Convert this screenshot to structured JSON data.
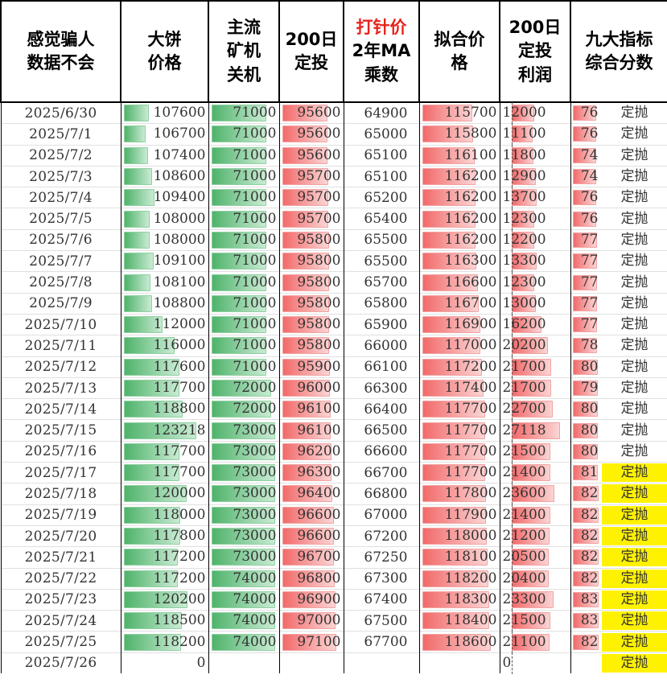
{
  "header": [
    {
      "lines": [
        "感觉骗人",
        "数据不会"
      ]
    },
    {
      "lines": [
        "大饼",
        "价格"
      ]
    },
    {
      "lines": [
        "主流",
        "矿机",
        "关机"
      ]
    },
    {
      "lines": [
        "200日",
        "定投"
      ]
    },
    {
      "lines": [
        "打针价",
        "2年MA",
        "乘数"
      ],
      "red_line": 0
    },
    {
      "lines": [
        "拟合价",
        "格"
      ]
    },
    {
      "lines": [
        "200日",
        "定投",
        "利润"
      ]
    },
    {
      "lines": [
        "九大指标",
        "综合分数"
      ]
    }
  ],
  "colors": {
    "green_bar": "#4fb36b",
    "red_bar": "#f26a6a",
    "highlight": "#fff200",
    "header_red": "#e8231c"
  },
  "rows": [
    {
      "date": "2025/6/30",
      "btc": "107600",
      "shutdown": "71000",
      "dca": "95600",
      "ma2y": "64900",
      "fit": "115700",
      "profit": "12000",
      "score": "76",
      "label": "定抛",
      "hl": false
    },
    {
      "date": "2025/7/1",
      "btc": "106700",
      "shutdown": "71000",
      "dca": "95600",
      "ma2y": "65000",
      "fit": "115800",
      "profit": "11100",
      "score": "76",
      "label": "定抛",
      "hl": false
    },
    {
      "date": "2025/7/2",
      "btc": "107400",
      "shutdown": "71000",
      "dca": "95600",
      "ma2y": "65100",
      "fit": "116100",
      "profit": "11800",
      "score": "74",
      "label": "定抛",
      "hl": false
    },
    {
      "date": "2025/7/3",
      "btc": "108600",
      "shutdown": "71000",
      "dca": "95700",
      "ma2y": "65100",
      "fit": "116200",
      "profit": "12900",
      "score": "74",
      "label": "定抛",
      "hl": false
    },
    {
      "date": "2025/7/4",
      "btc": "109400",
      "shutdown": "71000",
      "dca": "95700",
      "ma2y": "65200",
      "fit": "116200",
      "profit": "13700",
      "score": "76",
      "label": "定抛",
      "hl": false
    },
    {
      "date": "2025/7/5",
      "btc": "108000",
      "shutdown": "71000",
      "dca": "95700",
      "ma2y": "65400",
      "fit": "116200",
      "profit": "12300",
      "score": "76",
      "label": "定抛",
      "hl": false
    },
    {
      "date": "2025/7/6",
      "btc": "108000",
      "shutdown": "71000",
      "dca": "95800",
      "ma2y": "65500",
      "fit": "116200",
      "profit": "12200",
      "score": "77",
      "label": "定抛",
      "hl": false
    },
    {
      "date": "2025/7/7",
      "btc": "109100",
      "shutdown": "71000",
      "dca": "95800",
      "ma2y": "65500",
      "fit": "116300",
      "profit": "13300",
      "score": "77",
      "label": "定抛",
      "hl": false
    },
    {
      "date": "2025/7/8",
      "btc": "108100",
      "shutdown": "71000",
      "dca": "95800",
      "ma2y": "65700",
      "fit": "116600",
      "profit": "12300",
      "score": "77",
      "label": "定抛",
      "hl": false
    },
    {
      "date": "2025/7/9",
      "btc": "108800",
      "shutdown": "71000",
      "dca": "95800",
      "ma2y": "65800",
      "fit": "116700",
      "profit": "13000",
      "score": "77",
      "label": "定抛",
      "hl": false
    },
    {
      "date": "2025/7/10",
      "btc": "112000",
      "shutdown": "71000",
      "dca": "95800",
      "ma2y": "65900",
      "fit": "116900",
      "profit": "16200",
      "score": "77",
      "label": "定抛",
      "hl": false
    },
    {
      "date": "2025/7/11",
      "btc": "116000",
      "shutdown": "71000",
      "dca": "95800",
      "ma2y": "66000",
      "fit": "117000",
      "profit": "20200",
      "score": "78",
      "label": "定抛",
      "hl": false
    },
    {
      "date": "2025/7/12",
      "btc": "117600",
      "shutdown": "71000",
      "dca": "95900",
      "ma2y": "66100",
      "fit": "117200",
      "profit": "21700",
      "score": "80",
      "label": "定抛",
      "hl": false
    },
    {
      "date": "2025/7/13",
      "btc": "117700",
      "shutdown": "72000",
      "dca": "96000",
      "ma2y": "66300",
      "fit": "117400",
      "profit": "21700",
      "score": "79",
      "label": "定抛",
      "hl": false
    },
    {
      "date": "2025/7/14",
      "btc": "118800",
      "shutdown": "72000",
      "dca": "96100",
      "ma2y": "66400",
      "fit": "117700",
      "profit": "22700",
      "score": "80",
      "label": "定抛",
      "hl": false
    },
    {
      "date": "2025/7/15",
      "btc": "123218",
      "shutdown": "73000",
      "dca": "96100",
      "ma2y": "66500",
      "fit": "117700",
      "profit": "27118",
      "score": "80",
      "label": "定抛",
      "hl": false
    },
    {
      "date": "2025/7/16",
      "btc": "117700",
      "shutdown": "73000",
      "dca": "96200",
      "ma2y": "66600",
      "fit": "117700",
      "profit": "21500",
      "score": "80",
      "label": "定抛",
      "hl": false
    },
    {
      "date": "2025/7/17",
      "btc": "117700",
      "shutdown": "73000",
      "dca": "96300",
      "ma2y": "66700",
      "fit": "117700",
      "profit": "21400",
      "score": "81",
      "label": "定抛",
      "hl": true
    },
    {
      "date": "2025/7/18",
      "btc": "120000",
      "shutdown": "73000",
      "dca": "96400",
      "ma2y": "66800",
      "fit": "117800",
      "profit": "23600",
      "score": "82",
      "label": "定抛",
      "hl": true
    },
    {
      "date": "2025/7/19",
      "btc": "118000",
      "shutdown": "73000",
      "dca": "96600",
      "ma2y": "67000",
      "fit": "117900",
      "profit": "21400",
      "score": "82",
      "label": "定抛",
      "hl": true
    },
    {
      "date": "2025/7/20",
      "btc": "117800",
      "shutdown": "73000",
      "dca": "96600",
      "ma2y": "67200",
      "fit": "118000",
      "profit": "21200",
      "score": "82",
      "label": "定抛",
      "hl": true
    },
    {
      "date": "2025/7/21",
      "btc": "117200",
      "shutdown": "73000",
      "dca": "96700",
      "ma2y": "67250",
      "fit": "118100",
      "profit": "20500",
      "score": "82",
      "label": "定抛",
      "hl": true
    },
    {
      "date": "2025/7/22",
      "btc": "117200",
      "shutdown": "74000",
      "dca": "96800",
      "ma2y": "67300",
      "fit": "118200",
      "profit": "20400",
      "score": "82",
      "label": "定抛",
      "hl": true
    },
    {
      "date": "2025/7/23",
      "btc": "120200",
      "shutdown": "74000",
      "dca": "96900",
      "ma2y": "67400",
      "fit": "118300",
      "profit": "23300",
      "score": "83",
      "label": "定抛",
      "hl": true
    },
    {
      "date": "2025/7/24",
      "btc": "118500",
      "shutdown": "74000",
      "dca": "97000",
      "ma2y": "67500",
      "fit": "118400",
      "profit": "21500",
      "score": "83",
      "label": "定抛",
      "hl": true
    },
    {
      "date": "2025/7/25",
      "btc": "118200",
      "shutdown": "74000",
      "dca": "97100",
      "ma2y": "67700",
      "fit": "118600",
      "profit": "21100",
      "score": "82",
      "label": "定抛",
      "hl": true
    },
    {
      "date": "2025/7/26",
      "btc": "0",
      "shutdown": "",
      "dca": "",
      "ma2y": "",
      "fit": "",
      "profit": "0",
      "score": "",
      "label": "定抛",
      "hl": true
    }
  ]
}
